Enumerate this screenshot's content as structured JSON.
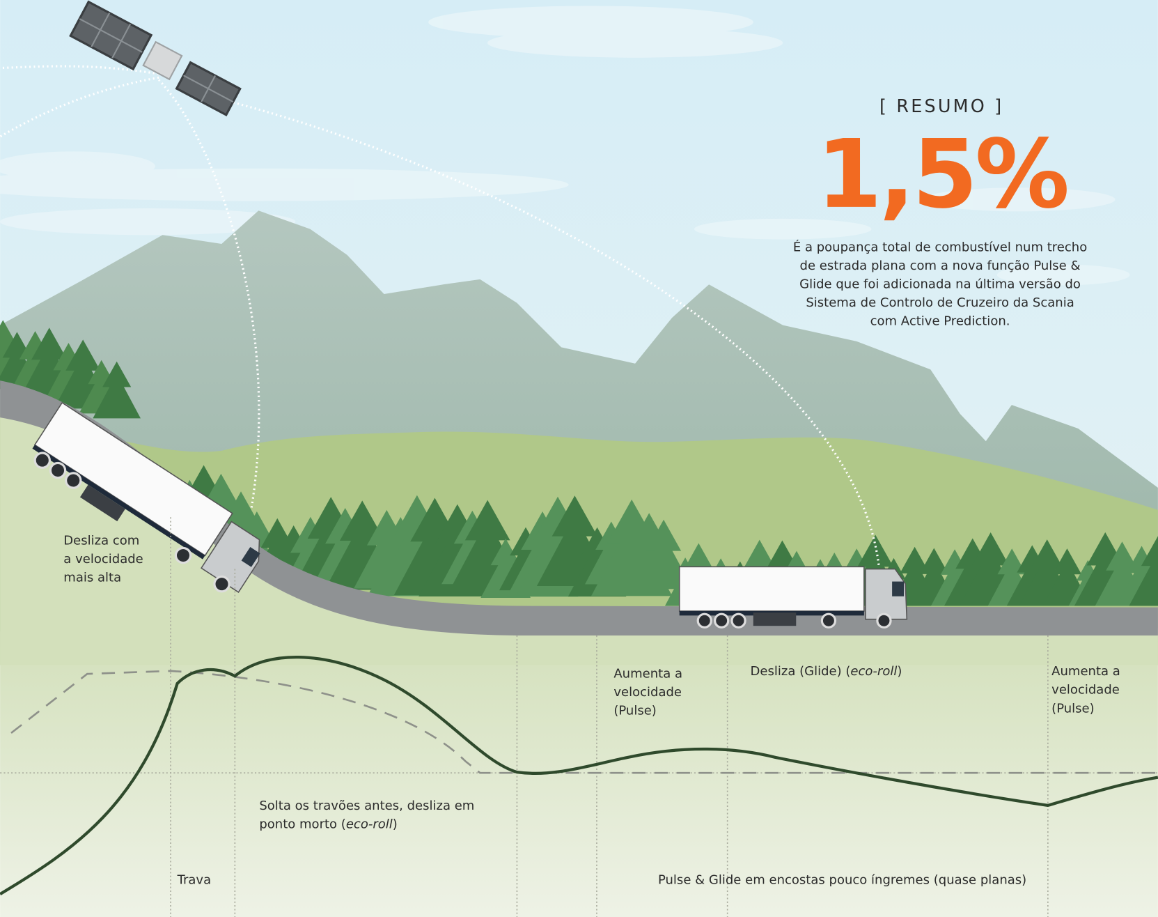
{
  "summary": {
    "label": "[ RESUMO ]",
    "value": "1,5%",
    "description": [
      "É a poupança total de combustível num trecho",
      "de estrada plana com a nova função Pulse &",
      "Glide que foi adicionada na última versão do",
      "Sistema de Controlo de Cruzeiro da Scania",
      "com Active Prediction."
    ]
  },
  "labels": [
    {
      "lines": [
        "Desliza com",
        "a velocidade",
        "mais alta"
      ]
    },
    {
      "lines": [
        "Trava"
      ]
    },
    {
      "lines": [
        "Solta os travões antes, desliza em",
        [
          "ponto morto (",
          {
            "text": "eco-roll",
            "style": "italic"
          },
          ")"
        ]
      ]
    },
    {
      "lines": [
        "Aumenta a",
        "velocidade",
        "(Pulse)"
      ]
    },
    {
      "lines": [
        [
          "Desliza (Glide) (",
          {
            "text": "eco-roll",
            "style": "italic"
          },
          ")"
        ]
      ]
    },
    {
      "lines": [
        "Aumenta a",
        "velocidade",
        "(Pulse)"
      ]
    },
    {
      "lines": [
        "Pulse & Glide em encostas pouco íngremes (quase planas)"
      ]
    }
  ]
}
